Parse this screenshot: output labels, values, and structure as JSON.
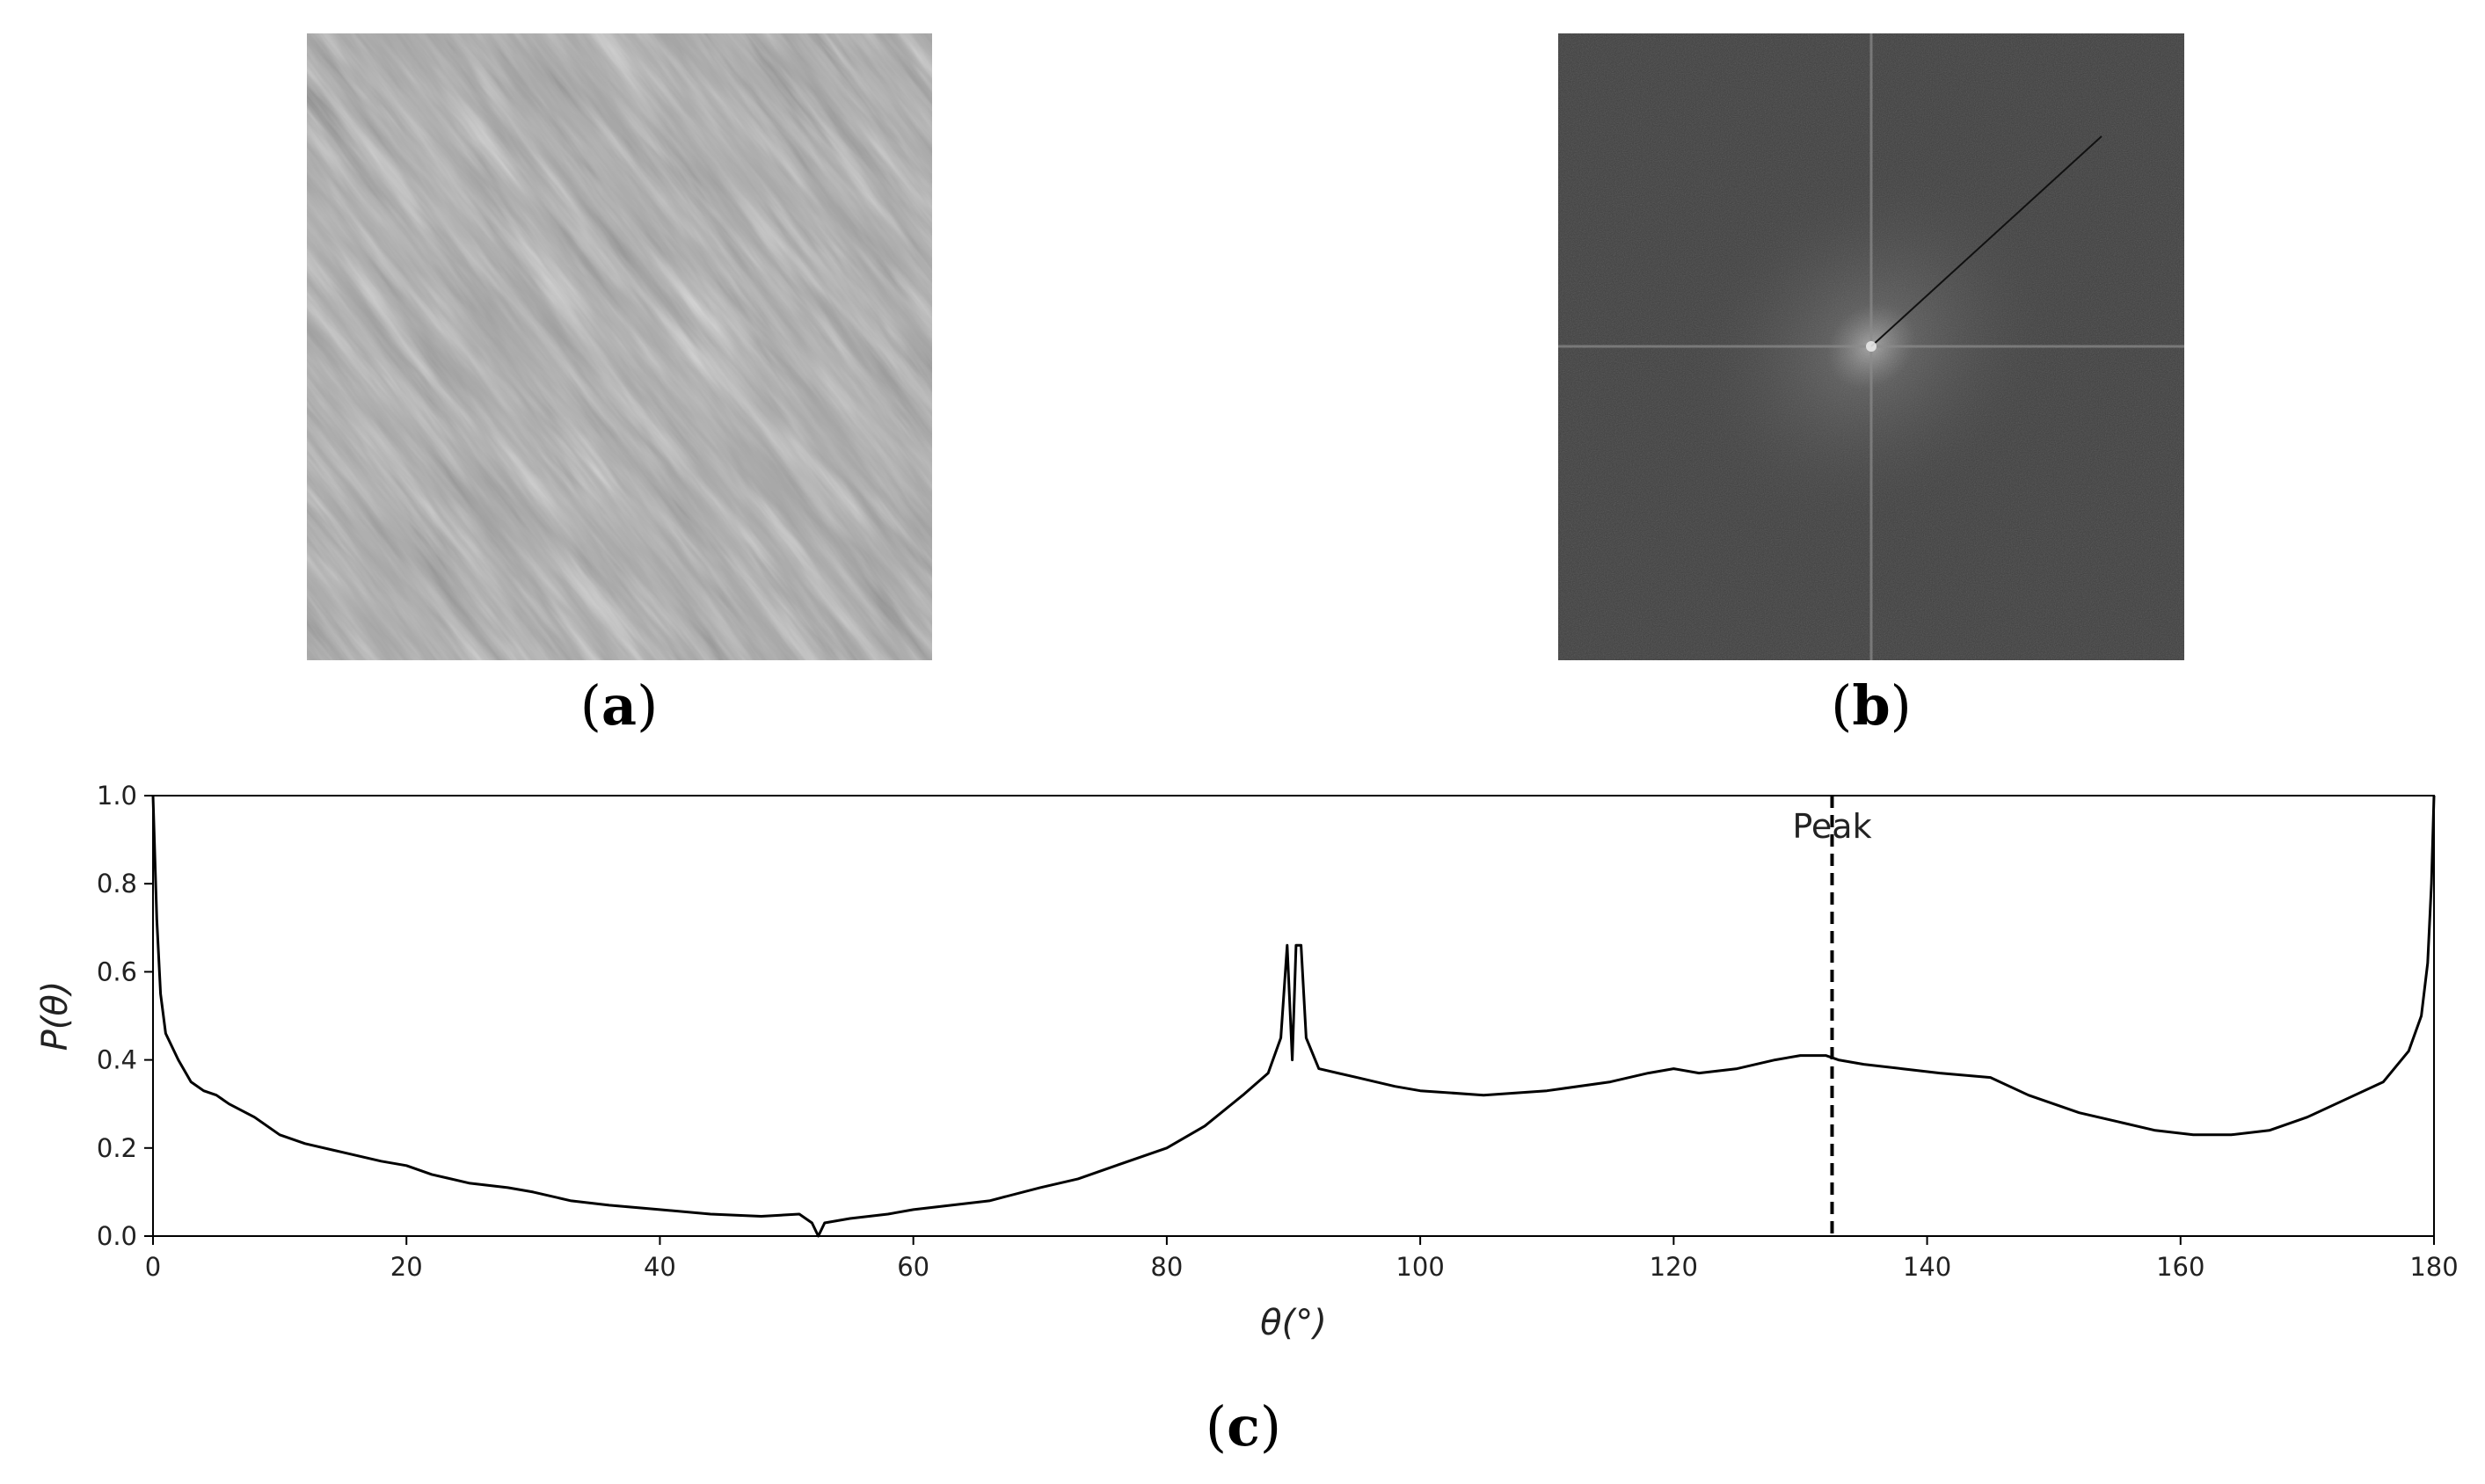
{
  "panels": {
    "a": {
      "caption_open": "(",
      "caption_letter": "a",
      "caption_close": ")"
    },
    "b": {
      "caption_open": "(",
      "caption_letter": "b",
      "caption_close": ")"
    },
    "c": {
      "caption_open": "(",
      "caption_letter": "c",
      "caption_close": ")"
    }
  },
  "colors": {
    "line": "#000000",
    "texture_base": "#a3a3a3",
    "fft_background": "#3d3d3d"
  },
  "chart_data": {
    "type": "line",
    "title": "",
    "xlabel": "θ(°)",
    "ylabel": "P(θ)",
    "xlim": [
      0,
      180
    ],
    "ylim": [
      0,
      1.0
    ],
    "xticks": [
      0,
      20,
      40,
      60,
      80,
      100,
      120,
      140,
      160,
      180
    ],
    "yticks": [
      "0.0",
      "0.2",
      "0.4",
      "0.6",
      "0.8",
      "1.0"
    ],
    "grid": false,
    "series": [
      {
        "values": [
          [
            0,
            1.0
          ],
          [
            0.3,
            0.72
          ],
          [
            0.6,
            0.55
          ],
          [
            1,
            0.46
          ],
          [
            2,
            0.4
          ],
          [
            3,
            0.35
          ],
          [
            4,
            0.33
          ],
          [
            5,
            0.32
          ],
          [
            6,
            0.3
          ],
          [
            8,
            0.27
          ],
          [
            10,
            0.23
          ],
          [
            12,
            0.21
          ],
          [
            15,
            0.19
          ],
          [
            18,
            0.17
          ],
          [
            20,
            0.16
          ],
          [
            22,
            0.14
          ],
          [
            25,
            0.12
          ],
          [
            28,
            0.11
          ],
          [
            30,
            0.1
          ],
          [
            33,
            0.08
          ],
          [
            36,
            0.07
          ],
          [
            40,
            0.06
          ],
          [
            44,
            0.05
          ],
          [
            48,
            0.045
          ],
          [
            51,
            0.05
          ],
          [
            52,
            0.03
          ],
          [
            52.5,
            0.0
          ],
          [
            53,
            0.03
          ],
          [
            55,
            0.04
          ],
          [
            58,
            0.05
          ],
          [
            60,
            0.06
          ],
          [
            63,
            0.07
          ],
          [
            66,
            0.08
          ],
          [
            70,
            0.11
          ],
          [
            73,
            0.13
          ],
          [
            76,
            0.16
          ],
          [
            80,
            0.2
          ],
          [
            83,
            0.25
          ],
          [
            86,
            0.32
          ],
          [
            88,
            0.37
          ],
          [
            89,
            0.45
          ],
          [
            89.5,
            0.66
          ],
          [
            89.9,
            0.4
          ],
          [
            90.2,
            0.66
          ],
          [
            90.6,
            0.66
          ],
          [
            91,
            0.45
          ],
          [
            92,
            0.38
          ],
          [
            95,
            0.36
          ],
          [
            98,
            0.34
          ],
          [
            100,
            0.33
          ],
          [
            105,
            0.32
          ],
          [
            110,
            0.33
          ],
          [
            115,
            0.35
          ],
          [
            118,
            0.37
          ],
          [
            120,
            0.38
          ],
          [
            122,
            0.37
          ],
          [
            125,
            0.38
          ],
          [
            128,
            0.4
          ],
          [
            130,
            0.41
          ],
          [
            132,
            0.41
          ],
          [
            133,
            0.4
          ],
          [
            135,
            0.39
          ],
          [
            138,
            0.38
          ],
          [
            141,
            0.37
          ],
          [
            145,
            0.36
          ],
          [
            148,
            0.32
          ],
          [
            152,
            0.28
          ],
          [
            155,
            0.26
          ],
          [
            158,
            0.24
          ],
          [
            161,
            0.23
          ],
          [
            164,
            0.23
          ],
          [
            167,
            0.24
          ],
          [
            170,
            0.27
          ],
          [
            173,
            0.31
          ],
          [
            176,
            0.35
          ],
          [
            178,
            0.42
          ],
          [
            179,
            0.5
          ],
          [
            179.5,
            0.62
          ],
          [
            179.8,
            0.8
          ],
          [
            180,
            1.0
          ]
        ]
      }
    ],
    "annotations": [
      {
        "text": "Peak",
        "x": 132.5
      }
    ]
  }
}
